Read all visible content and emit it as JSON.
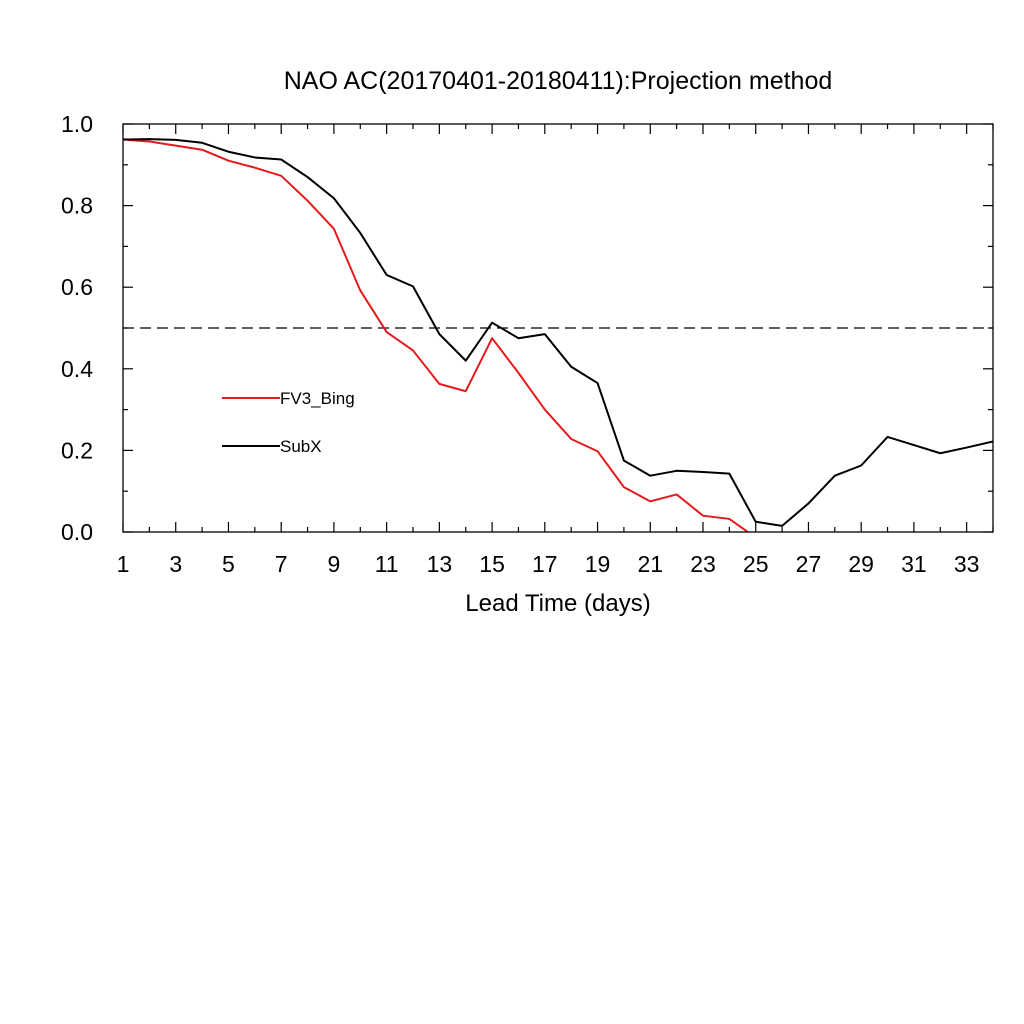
{
  "chart_data": {
    "type": "line",
    "title": "NAO AC(20170401-20180411):Projection method",
    "xlabel": "Lead Time (days)",
    "ylabel": "",
    "xlim": [
      1,
      34
    ],
    "ylim": [
      0.0,
      1.0
    ],
    "xticks_labeled": [
      1,
      3,
      5,
      7,
      9,
      11,
      13,
      15,
      17,
      19,
      21,
      23,
      25,
      27,
      29,
      31,
      33
    ],
    "yticks_labeled": [
      "0.0",
      "0.2",
      "0.4",
      "0.6",
      "0.8",
      "1.0"
    ],
    "yticks_values": [
      0.0,
      0.2,
      0.4,
      0.6,
      0.8,
      1.0
    ],
    "reference_line": {
      "y": 0.5,
      "style": "dashed",
      "color": "#000000"
    },
    "grid": false,
    "legend_position": "left-middle",
    "series": [
      {
        "name": "FV3_Bing",
        "color": "#e41a1c",
        "x": [
          1,
          2,
          3,
          4,
          5,
          6,
          7,
          8,
          9,
          10,
          11,
          12,
          13,
          14,
          15,
          16,
          17,
          18,
          19,
          20,
          21,
          22,
          23,
          24,
          24.7
        ],
        "y": [
          0.962,
          0.957,
          0.947,
          0.937,
          0.91,
          0.893,
          0.873,
          0.812,
          0.743,
          0.592,
          0.49,
          0.445,
          0.363,
          0.345,
          0.475,
          0.39,
          0.3,
          0.228,
          0.198,
          0.11,
          0.075,
          0.092,
          0.04,
          0.032,
          0.0
        ]
      },
      {
        "name": "SubX",
        "color": "#000000",
        "x": [
          1,
          2,
          3,
          4,
          5,
          6,
          7,
          8,
          9,
          10,
          11,
          12,
          13,
          14,
          15,
          16,
          17,
          18,
          19,
          20,
          21,
          22,
          23,
          24,
          25,
          26,
          27,
          28,
          29,
          30,
          31,
          32,
          33,
          34
        ],
        "y": [
          0.962,
          0.963,
          0.961,
          0.954,
          0.932,
          0.918,
          0.913,
          0.87,
          0.818,
          0.733,
          0.63,
          0.602,
          0.485,
          0.42,
          0.513,
          0.475,
          0.485,
          0.405,
          0.365,
          0.175,
          0.138,
          0.15,
          0.147,
          0.143,
          0.025,
          0.015,
          0.07,
          0.138,
          0.163,
          0.233,
          0.213,
          0.193,
          0.207,
          0.222
        ]
      }
    ]
  }
}
